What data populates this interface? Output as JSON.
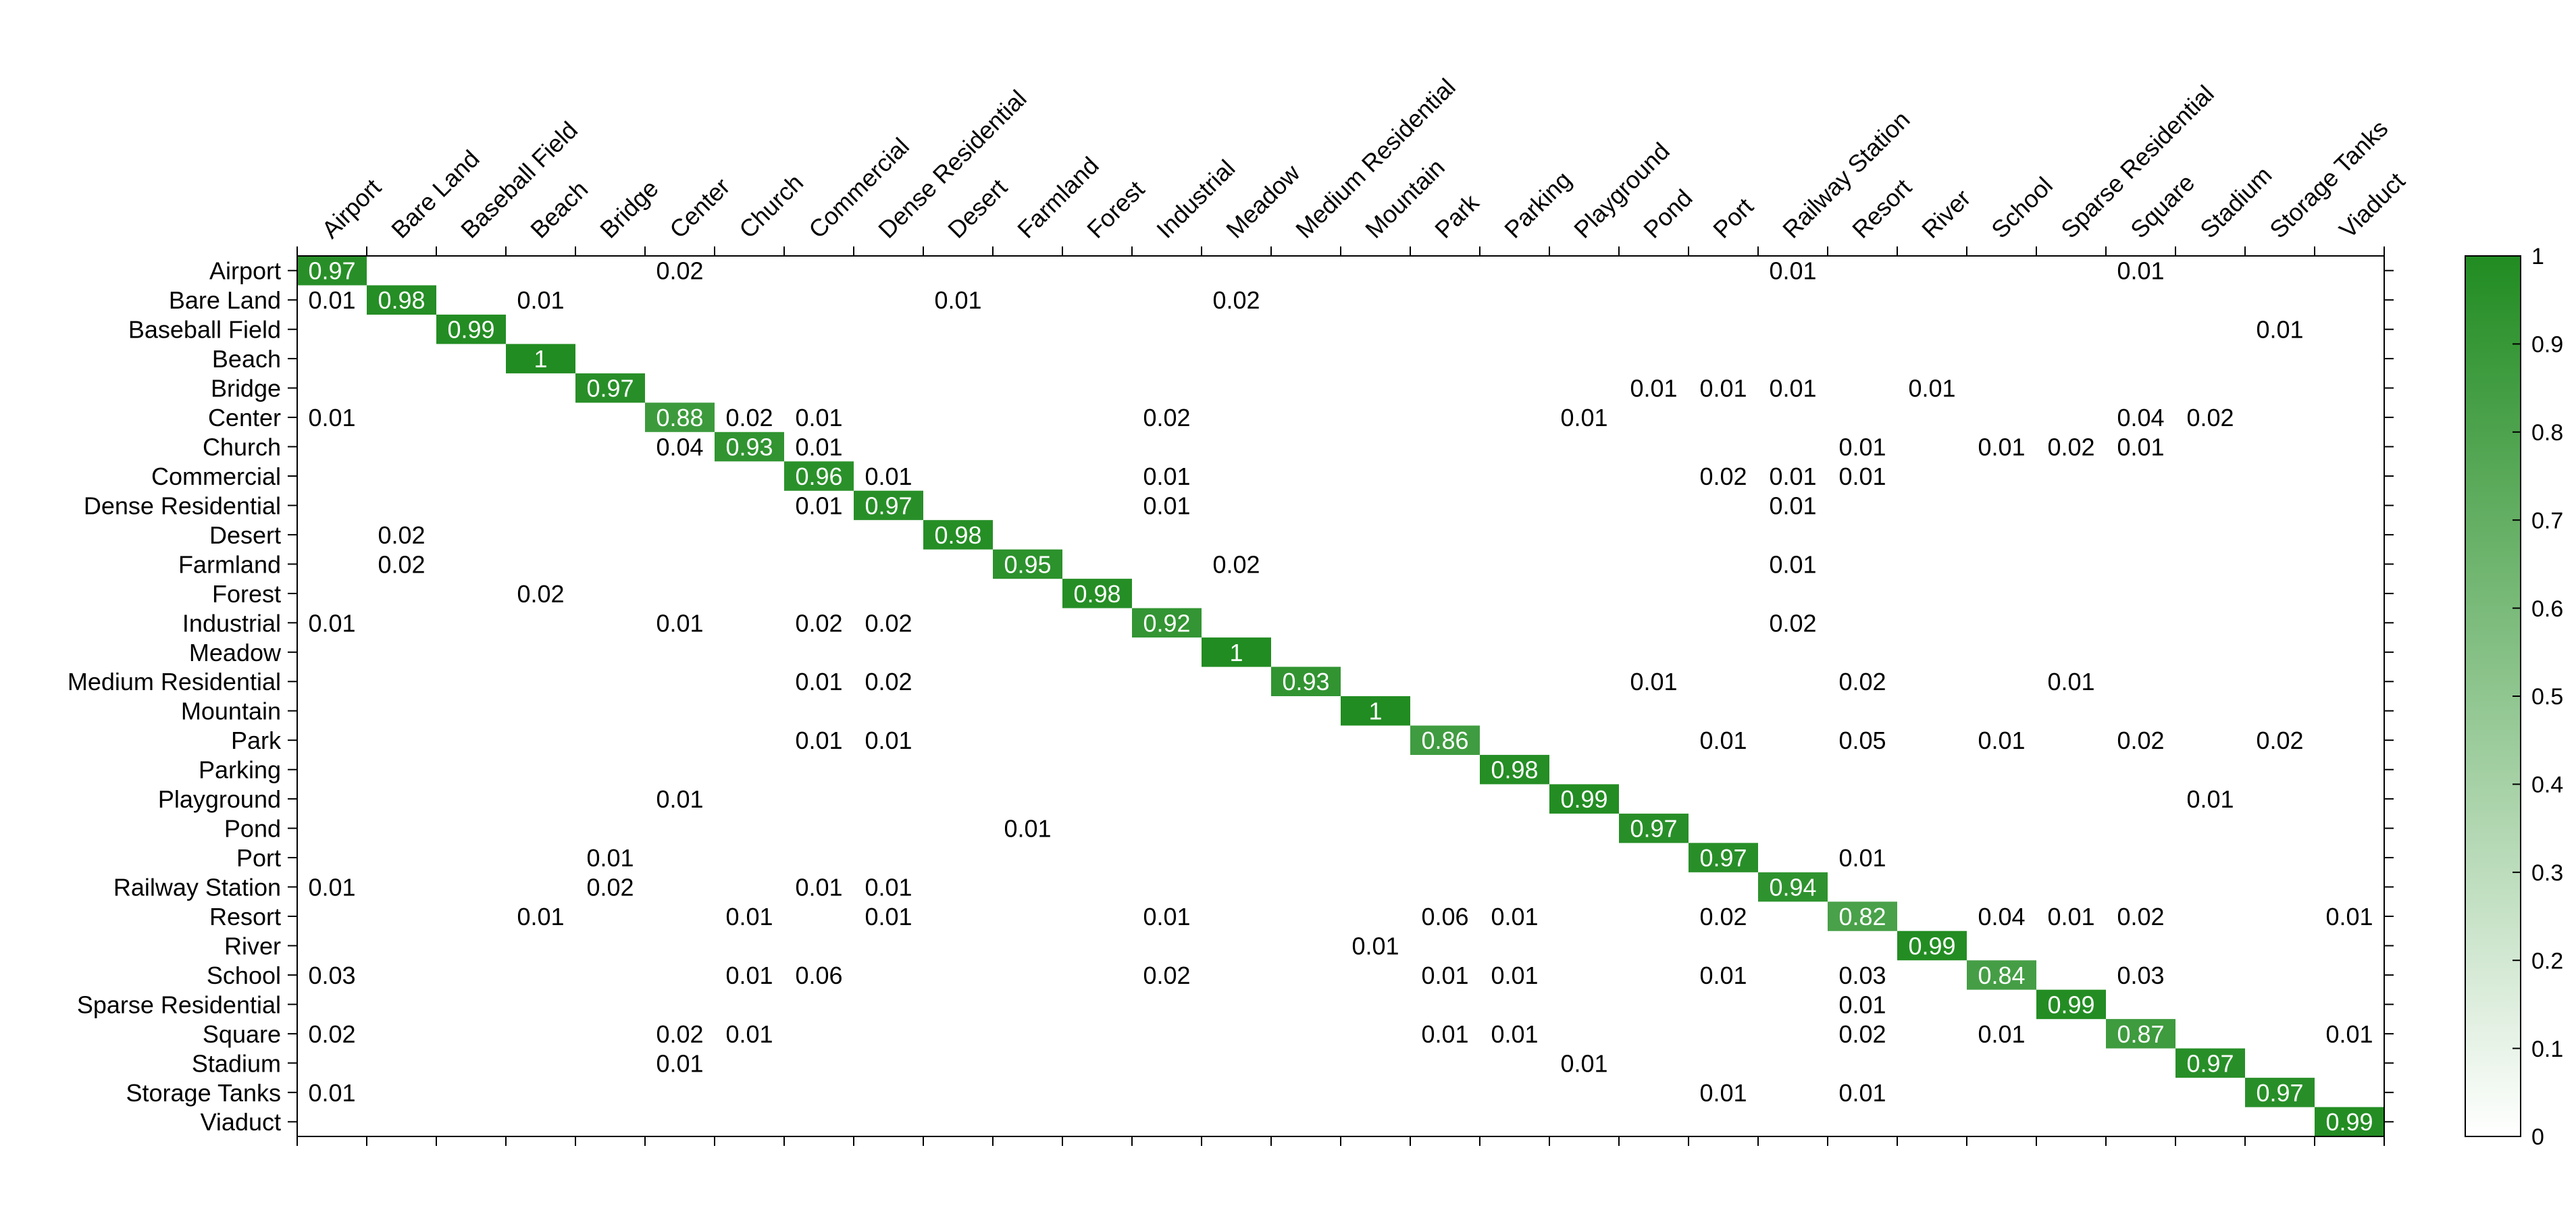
{
  "chart_data": {
    "type": "heatmap",
    "title": "",
    "xlabel": "",
    "ylabel": "",
    "classes": [
      "Airport",
      "Bare Land",
      "Baseball Field",
      "Beach",
      "Bridge",
      "Center",
      "Church",
      "Commercial",
      "Dense Residential",
      "Desert",
      "Farmland",
      "Forest",
      "Industrial",
      "Meadow",
      "Medium Residential",
      "Mountain",
      "Park",
      "Parking",
      "Playground",
      "Pond",
      "Port",
      "Railway Station",
      "Resort",
      "River",
      "School",
      "Sparse Residential",
      "Square",
      "Stadium",
      "Storage Tanks",
      "Viaduct"
    ],
    "cells": [
      [
        "Airport",
        "Airport",
        "0.97"
      ],
      [
        "Airport",
        "Center",
        "0.02"
      ],
      [
        "Airport",
        "Railway Station",
        "0.01"
      ],
      [
        "Airport",
        "Square",
        "0.01"
      ],
      [
        "Bare Land",
        "Airport",
        "0.01"
      ],
      [
        "Bare Land",
        "Bare Land",
        "0.98"
      ],
      [
        "Bare Land",
        "Beach",
        "0.01"
      ],
      [
        "Bare Land",
        "Desert",
        "0.01"
      ],
      [
        "Bare Land",
        "Meadow",
        "0.02"
      ],
      [
        "Baseball Field",
        "Baseball Field",
        "0.99"
      ],
      [
        "Baseball Field",
        "Storage Tanks",
        "0.01"
      ],
      [
        "Beach",
        "Beach",
        "1"
      ],
      [
        "Bridge",
        "Bridge",
        "0.97"
      ],
      [
        "Bridge",
        "Pond",
        "0.01"
      ],
      [
        "Bridge",
        "Port",
        "0.01"
      ],
      [
        "Bridge",
        "Railway Station",
        "0.01"
      ],
      [
        "Bridge",
        "River",
        "0.01"
      ],
      [
        "Center",
        "Airport",
        "0.01"
      ],
      [
        "Center",
        "Center",
        "0.88"
      ],
      [
        "Center",
        "Church",
        "0.02"
      ],
      [
        "Center",
        "Commercial",
        "0.01"
      ],
      [
        "Center",
        "Industrial",
        "0.02"
      ],
      [
        "Center",
        "Playground",
        "0.01"
      ],
      [
        "Center",
        "Square",
        "0.04"
      ],
      [
        "Center",
        "Stadium",
        "0.02"
      ],
      [
        "Church",
        "Center",
        "0.04"
      ],
      [
        "Church",
        "Church",
        "0.93"
      ],
      [
        "Church",
        "Commercial",
        "0.01"
      ],
      [
        "Church",
        "Resort",
        "0.01"
      ],
      [
        "Church",
        "School",
        "0.01"
      ],
      [
        "Church",
        "Sparse Residential",
        "0.02"
      ],
      [
        "Church",
        "Square",
        "0.01"
      ],
      [
        "Commercial",
        "Commercial",
        "0.96"
      ],
      [
        "Commercial",
        "Dense Residential",
        "0.01"
      ],
      [
        "Commercial",
        "Industrial",
        "0.01"
      ],
      [
        "Commercial",
        "Port",
        "0.02"
      ],
      [
        "Commercial",
        "Railway Station",
        "0.01"
      ],
      [
        "Commercial",
        "Resort",
        "0.01"
      ],
      [
        "Dense Residential",
        "Commercial",
        "0.01"
      ],
      [
        "Dense Residential",
        "Dense Residential",
        "0.97"
      ],
      [
        "Dense Residential",
        "Industrial",
        "0.01"
      ],
      [
        "Dense Residential",
        "Railway Station",
        "0.01"
      ],
      [
        "Desert",
        "Bare Land",
        "0.02"
      ],
      [
        "Desert",
        "Desert",
        "0.98"
      ],
      [
        "Farmland",
        "Bare Land",
        "0.02"
      ],
      [
        "Farmland",
        "Farmland",
        "0.95"
      ],
      [
        "Farmland",
        "Meadow",
        "0.02"
      ],
      [
        "Farmland",
        "Railway Station",
        "0.01"
      ],
      [
        "Forest",
        "Beach",
        "0.02"
      ],
      [
        "Forest",
        "Forest",
        "0.98"
      ],
      [
        "Industrial",
        "Airport",
        "0.01"
      ],
      [
        "Industrial",
        "Center",
        "0.01"
      ],
      [
        "Industrial",
        "Commercial",
        "0.02"
      ],
      [
        "Industrial",
        "Dense Residential",
        "0.02"
      ],
      [
        "Industrial",
        "Industrial",
        "0.92"
      ],
      [
        "Industrial",
        "Railway Station",
        "0.02"
      ],
      [
        "Meadow",
        "Meadow",
        "1"
      ],
      [
        "Medium Residential",
        "Commercial",
        "0.01"
      ],
      [
        "Medium Residential",
        "Dense Residential",
        "0.02"
      ],
      [
        "Medium Residential",
        "Medium Residential",
        "0.93"
      ],
      [
        "Medium Residential",
        "Pond",
        "0.01"
      ],
      [
        "Medium Residential",
        "Resort",
        "0.02"
      ],
      [
        "Medium Residential",
        "Sparse Residential",
        "0.01"
      ],
      [
        "Mountain",
        "Mountain",
        "1"
      ],
      [
        "Park",
        "Commercial",
        "0.01"
      ],
      [
        "Park",
        "Dense Residential",
        "0.01"
      ],
      [
        "Park",
        "Park",
        "0.86"
      ],
      [
        "Park",
        "Port",
        "0.01"
      ],
      [
        "Park",
        "Resort",
        "0.05"
      ],
      [
        "Park",
        "School",
        "0.01"
      ],
      [
        "Park",
        "Square",
        "0.02"
      ],
      [
        "Park",
        "Storage Tanks",
        "0.02"
      ],
      [
        "Parking",
        "Parking",
        "0.98"
      ],
      [
        "Playground",
        "Center",
        "0.01"
      ],
      [
        "Playground",
        "Playground",
        "0.99"
      ],
      [
        "Playground",
        "Stadium",
        "0.01"
      ],
      [
        "Pond",
        "Farmland",
        "0.01"
      ],
      [
        "Pond",
        "Pond",
        "0.97"
      ],
      [
        "Port",
        "Bridge",
        "0.01"
      ],
      [
        "Port",
        "Port",
        "0.97"
      ],
      [
        "Port",
        "Resort",
        "0.01"
      ],
      [
        "Railway Station",
        "Airport",
        "0.01"
      ],
      [
        "Railway Station",
        "Bridge",
        "0.02"
      ],
      [
        "Railway Station",
        "Commercial",
        "0.01"
      ],
      [
        "Railway Station",
        "Dense Residential",
        "0.01"
      ],
      [
        "Railway Station",
        "Railway Station",
        "0.94"
      ],
      [
        "Resort",
        "Beach",
        "0.01"
      ],
      [
        "Resort",
        "Church",
        "0.01"
      ],
      [
        "Resort",
        "Dense Residential",
        "0.01"
      ],
      [
        "Resort",
        "Industrial",
        "0.01"
      ],
      [
        "Resort",
        "Park",
        "0.06"
      ],
      [
        "Resort",
        "Parking",
        "0.01"
      ],
      [
        "Resort",
        "Port",
        "0.02"
      ],
      [
        "Resort",
        "Resort",
        "0.82"
      ],
      [
        "Resort",
        "School",
        "0.04"
      ],
      [
        "Resort",
        "Sparse Residential",
        "0.01"
      ],
      [
        "Resort",
        "Square",
        "0.02"
      ],
      [
        "Resort",
        "Viaduct",
        "0.01"
      ],
      [
        "River",
        "Mountain",
        "0.01"
      ],
      [
        "River",
        "River",
        "0.99"
      ],
      [
        "School",
        "Airport",
        "0.03"
      ],
      [
        "School",
        "Church",
        "0.01"
      ],
      [
        "School",
        "Commercial",
        "0.06"
      ],
      [
        "School",
        "Industrial",
        "0.02"
      ],
      [
        "School",
        "Park",
        "0.01"
      ],
      [
        "School",
        "Parking",
        "0.01"
      ],
      [
        "School",
        "Port",
        "0.01"
      ],
      [
        "School",
        "Resort",
        "0.03"
      ],
      [
        "School",
        "School",
        "0.84"
      ],
      [
        "School",
        "Square",
        "0.03"
      ],
      [
        "Sparse Residential",
        "Resort",
        "0.01"
      ],
      [
        "Sparse Residential",
        "Sparse Residential",
        "0.99"
      ],
      [
        "Square",
        "Airport",
        "0.02"
      ],
      [
        "Square",
        "Center",
        "0.02"
      ],
      [
        "Square",
        "Church",
        "0.01"
      ],
      [
        "Square",
        "Park",
        "0.01"
      ],
      [
        "Square",
        "Parking",
        "0.01"
      ],
      [
        "Square",
        "Resort",
        "0.02"
      ],
      [
        "Square",
        "School",
        "0.01"
      ],
      [
        "Square",
        "Square",
        "0.87"
      ],
      [
        "Square",
        "Viaduct",
        "0.01"
      ],
      [
        "Stadium",
        "Center",
        "0.01"
      ],
      [
        "Stadium",
        "Playground",
        "0.01"
      ],
      [
        "Stadium",
        "Stadium",
        "0.97"
      ],
      [
        "Storage Tanks",
        "Airport",
        "0.01"
      ],
      [
        "Storage Tanks",
        "Port",
        "0.01"
      ],
      [
        "Storage Tanks",
        "Resort",
        "0.01"
      ],
      [
        "Storage Tanks",
        "Storage Tanks",
        "0.97"
      ],
      [
        "Viaduct",
        "Viaduct",
        "0.99"
      ]
    ],
    "colorbar": {
      "range": [
        0,
        1
      ],
      "ticks": [
        "0",
        "0.1",
        "0.2",
        "0.3",
        "0.4",
        "0.5",
        "0.6",
        "0.7",
        "0.8",
        "0.9",
        "1"
      ],
      "min_color": "#ffffff",
      "max_color": "#218c21"
    },
    "colors": {
      "cell_max": "#218c21",
      "highlight_text": "#ffffff",
      "text": "#000000",
      "axis": "#000000"
    }
  }
}
